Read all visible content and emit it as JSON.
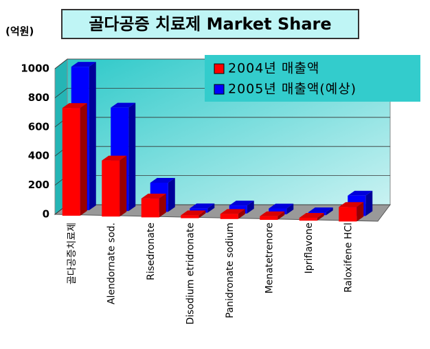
{
  "chart_data": {
    "type": "bar3d",
    "title": "골다공증 치료제 Market Share",
    "unit": "(억원)",
    "categories": [
      "골다공증치료제",
      "Alendornate sod.",
      "Risedronate",
      "Disodium etridronate",
      "Panidronate sodium",
      "Menatetrenore",
      "Ipriflavone",
      "Raloxifene HCl"
    ],
    "series": [
      {
        "name": "2004년 매출액",
        "color": "#ff0000",
        "values": [
          740,
          385,
          130,
          20,
          35,
          25,
          20,
          100
        ]
      },
      {
        "name": "2005년 매출액(예상)",
        "color": "#0000ff",
        "values": [
          985,
          710,
          200,
          30,
          55,
          40,
          20,
          140
        ]
      }
    ],
    "ylim": [
      0,
      1000
    ],
    "yticks": [
      0,
      200,
      400,
      600,
      800,
      1000
    ],
    "grid": true
  }
}
